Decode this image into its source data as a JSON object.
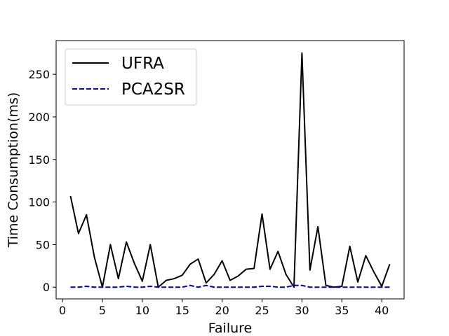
{
  "chart_data": {
    "type": "line",
    "xlabel": "Failure",
    "ylabel": "Time Consumption(ms)",
    "xlim": [
      -0.8,
      42.8
    ],
    "ylim": [
      -13.8,
      289.6
    ],
    "xticks": [
      0,
      5,
      10,
      15,
      20,
      25,
      30,
      35,
      40
    ],
    "yticks": [
      0,
      50,
      100,
      150,
      200,
      250
    ],
    "grid": false,
    "legend_position": "upper-left",
    "x": [
      1,
      2,
      3,
      4,
      5,
      6,
      7,
      8,
      9,
      10,
      11,
      12,
      13,
      14,
      15,
      16,
      17,
      18,
      19,
      20,
      21,
      22,
      23,
      24,
      25,
      26,
      27,
      28,
      29,
      30,
      31,
      32,
      33,
      34,
      35,
      36,
      37,
      38,
      39,
      40,
      41
    ],
    "series": [
      {
        "name": "UFRA",
        "color": "#000000",
        "style": "solid",
        "values": [
          107,
          63,
          85,
          35,
          0,
          50,
          10,
          53,
          28,
          7,
          50,
          0,
          8,
          10,
          14,
          27,
          33,
          5,
          15,
          31,
          8,
          13,
          21,
          22,
          86,
          21,
          42,
          15,
          0,
          275,
          20,
          71,
          2,
          0,
          1,
          48,
          6,
          37,
          18,
          1,
          27
        ]
      },
      {
        "name": "PCA2SR",
        "color": "#0000cc",
        "style": "dashed",
        "values": [
          0,
          0,
          1,
          0,
          0,
          0,
          0,
          1,
          0,
          0,
          1,
          0,
          0,
          0,
          0,
          2,
          0,
          2,
          0,
          0,
          0,
          0,
          0,
          0,
          1,
          1,
          0,
          0,
          2,
          2,
          0,
          0,
          0,
          0,
          0,
          0,
          0,
          0,
          0,
          0,
          0
        ]
      }
    ]
  }
}
